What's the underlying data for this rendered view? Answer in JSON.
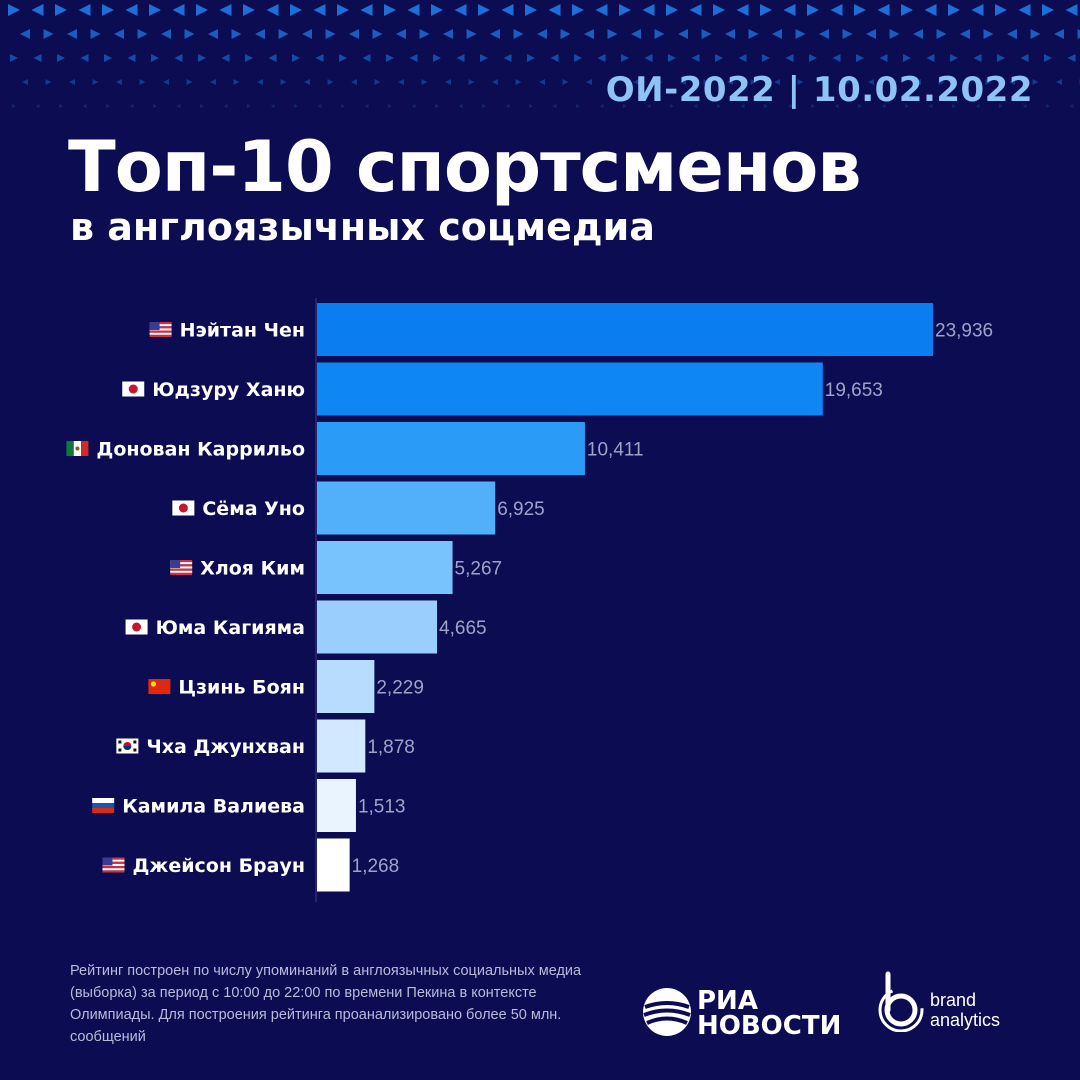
{
  "header": {
    "date_label": "ОИ-2022 | 10.02.2022",
    "title": "Топ-10 спортсменов",
    "subtitle": "в англоязычных соцмедиа"
  },
  "chart_data": {
    "type": "bar",
    "orientation": "horizontal",
    "categories": [
      "Нэйтан Чен",
      "Юдзуру Ханю",
      "Донован Каррильо",
      "Сёма Уно",
      "Хлоя Ким",
      "Юма Кагияма",
      "Цзинь Боян",
      "Чха Джунхван",
      "Камила Валиева",
      "Джейсон Браун"
    ],
    "flags": [
      "us",
      "jp",
      "mx",
      "jp",
      "us",
      "jp",
      "cn",
      "kr",
      "ru",
      "us"
    ],
    "values": [
      23936,
      19653,
      10411,
      6925,
      5267,
      4665,
      2229,
      1878,
      1513,
      1268
    ],
    "value_labels": [
      "23,936",
      "19,653",
      "10,411",
      "6,925",
      "5,267",
      "4,665",
      "2,229",
      "1,878",
      "1,513",
      "1,268"
    ],
    "bar_colors": [
      "#0a7df0",
      "#0e86f4",
      "#2a9cf7",
      "#52b0fb",
      "#78c2fd",
      "#9acffd",
      "#b8dcfe",
      "#d2e8fe",
      "#eaf4ff",
      "#ffffff"
    ],
    "xlim": [
      0,
      23936
    ],
    "grid": false,
    "title": "Топ-10 спортсменов в англоязычных соцмедиа"
  },
  "footnote": "Рейтинг построен по числу упоминаний в англоязычных социальных медиа (выборка) за период с 10:00 до 22:00 по времени Пекина в контексте Олимпиады. Для построения рейтинга проанализировано более 50 млн. сообщений",
  "logos": {
    "ria_line1": "РИА",
    "ria_line2": "НОВОСТИ",
    "ba_line1": "brand",
    "ba_line2": "analytics"
  },
  "colors": {
    "background": "#0b0c52",
    "accent": "#8ec3f5",
    "pattern": "#1c6fd6"
  }
}
